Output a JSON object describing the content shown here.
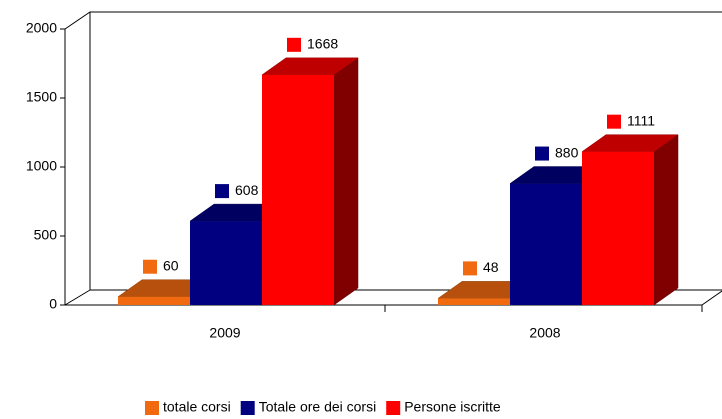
{
  "chart_data": {
    "type": "bar3d",
    "categories": [
      "2009",
      "2008"
    ],
    "series": [
      {
        "name": "totale corsi",
        "color": "#f26a10",
        "values": [
          60,
          48
        ]
      },
      {
        "name": "Totale ore dei corsi",
        "color": "#000080",
        "values": [
          608,
          880
        ]
      },
      {
        "name": "Persone iscritte",
        "color": "#ff0000",
        "values": [
          1668,
          1111
        ]
      }
    ],
    "ylim": [
      0,
      2000
    ],
    "yticks": [
      0,
      500,
      1000,
      1500,
      2000
    ],
    "grid": false,
    "legend": "bottom"
  }
}
